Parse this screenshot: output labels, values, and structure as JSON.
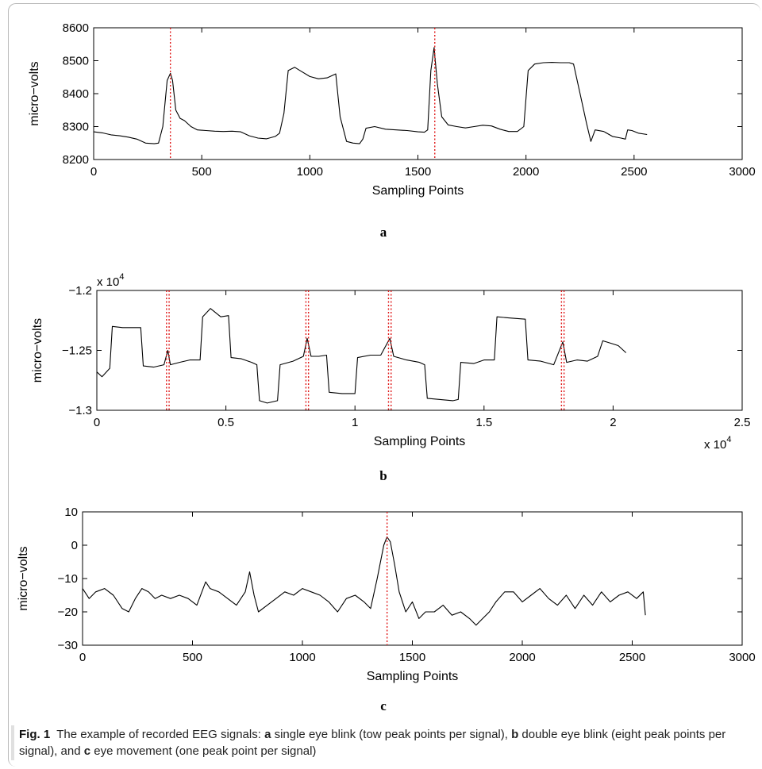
{
  "chart_data": [
    {
      "id": "a",
      "type": "line",
      "panel_label": "a",
      "xlabel": "Sampling Points",
      "ylabel": "micro−volts",
      "xlim": [
        0,
        3000
      ],
      "ylim": [
        8200,
        8600
      ],
      "xticks": [
        "0",
        "500",
        "1000",
        "1500",
        "2000",
        "2500",
        "3000"
      ],
      "yticks": [
        "8200",
        "8300",
        "8400",
        "8500",
        "8600"
      ],
      "exponent_x": "",
      "exponent_y": "",
      "markers_x": [
        355,
        1578
      ],
      "series": [
        {
          "color": "#000000",
          "points": [
            [
              0,
              8284
            ],
            [
              40,
              8281
            ],
            [
              80,
              8275
            ],
            [
              120,
              8272
            ],
            [
              160,
              8268
            ],
            [
              200,
              8262
            ],
            [
              240,
              8250
            ],
            [
              280,
              8248
            ],
            [
              300,
              8250
            ],
            [
              320,
              8300
            ],
            [
              340,
              8440
            ],
            [
              355,
              8462
            ],
            [
              365,
              8440
            ],
            [
              380,
              8350
            ],
            [
              400,
              8325
            ],
            [
              420,
              8318
            ],
            [
              450,
              8300
            ],
            [
              480,
              8290
            ],
            [
              520,
              8288
            ],
            [
              560,
              8286
            ],
            [
              600,
              8285
            ],
            [
              640,
              8286
            ],
            [
              680,
              8284
            ],
            [
              720,
              8272
            ],
            [
              760,
              8265
            ],
            [
              800,
              8263
            ],
            [
              840,
              8270
            ],
            [
              860,
              8280
            ],
            [
              880,
              8340
            ],
            [
              900,
              8470
            ],
            [
              930,
              8480
            ],
            [
              960,
              8468
            ],
            [
              1000,
              8452
            ],
            [
              1040,
              8445
            ],
            [
              1080,
              8448
            ],
            [
              1120,
              8460
            ],
            [
              1140,
              8330
            ],
            [
              1170,
              8255
            ],
            [
              1200,
              8250
            ],
            [
              1230,
              8248
            ],
            [
              1245,
              8262
            ],
            [
              1260,
              8295
            ],
            [
              1300,
              8300
            ],
            [
              1350,
              8292
            ],
            [
              1400,
              8290
            ],
            [
              1450,
              8288
            ],
            [
              1500,
              8284
            ],
            [
              1530,
              8283
            ],
            [
              1545,
              8290
            ],
            [
              1560,
              8470
            ],
            [
              1575,
              8540
            ],
            [
              1590,
              8430
            ],
            [
              1610,
              8330
            ],
            [
              1640,
              8305
            ],
            [
              1680,
              8300
            ],
            [
              1720,
              8296
            ],
            [
              1760,
              8300
            ],
            [
              1800,
              8304
            ],
            [
              1840,
              8302
            ],
            [
              1880,
              8292
            ],
            [
              1920,
              8285
            ],
            [
              1960,
              8285
            ],
            [
              1990,
              8300
            ],
            [
              2010,
              8470
            ],
            [
              2040,
              8490
            ],
            [
              2080,
              8494
            ],
            [
              2120,
              8495
            ],
            [
              2160,
              8494
            ],
            [
              2200,
              8494
            ],
            [
              2220,
              8490
            ],
            [
              2250,
              8400
            ],
            [
              2280,
              8310
            ],
            [
              2300,
              8255
            ],
            [
              2320,
              8290
            ],
            [
              2360,
              8285
            ],
            [
              2400,
              8270
            ],
            [
              2440,
              8265
            ],
            [
              2460,
              8262
            ],
            [
              2470,
              8290
            ],
            [
              2490,
              8288
            ],
            [
              2520,
              8280
            ],
            [
              2560,
              8276
            ]
          ]
        }
      ]
    },
    {
      "id": "b",
      "type": "line",
      "panel_label": "b",
      "xlabel": "Sampling Points",
      "ylabel": "micro−volts",
      "xlim": [
        0,
        2.5
      ],
      "ylim": [
        -1.3,
        -1.2
      ],
      "xticks": [
        "0",
        "0.5",
        "1",
        "1.5",
        "2",
        "2.5"
      ],
      "yticks": [
        "−1.3",
        "−1.25",
        "−1.2"
      ],
      "exponent_x": "x 10",
      "exponent_y": "x 10",
      "exponent_power": "4",
      "markers_x": [
        0.27,
        0.28,
        0.81,
        0.82,
        1.13,
        1.14,
        1.8,
        1.81
      ],
      "series": [
        {
          "color": "#000000",
          "points": [
            [
              0,
              -1.268
            ],
            [
              0.02,
              -1.272
            ],
            [
              0.05,
              -1.265
            ],
            [
              0.06,
              -1.23
            ],
            [
              0.1,
              -1.231
            ],
            [
              0.15,
              -1.231
            ],
            [
              0.17,
              -1.231
            ],
            [
              0.18,
              -1.263
            ],
            [
              0.22,
              -1.264
            ],
            [
              0.26,
              -1.262
            ],
            [
              0.275,
              -1.25
            ],
            [
              0.285,
              -1.262
            ],
            [
              0.32,
              -1.26
            ],
            [
              0.36,
              -1.258
            ],
            [
              0.4,
              -1.258
            ],
            [
              0.41,
              -1.222
            ],
            [
              0.44,
              -1.215
            ],
            [
              0.48,
              -1.222
            ],
            [
              0.51,
              -1.221
            ],
            [
              0.52,
              -1.256
            ],
            [
              0.56,
              -1.257
            ],
            [
              0.6,
              -1.26
            ],
            [
              0.62,
              -1.262
            ],
            [
              0.63,
              -1.292
            ],
            [
              0.66,
              -1.294
            ],
            [
              0.7,
              -1.292
            ],
            [
              0.71,
              -1.262
            ],
            [
              0.76,
              -1.259
            ],
            [
              0.8,
              -1.255
            ],
            [
              0.815,
              -1.24
            ],
            [
              0.83,
              -1.255
            ],
            [
              0.86,
              -1.255
            ],
            [
              0.89,
              -1.254
            ],
            [
              0.9,
              -1.285
            ],
            [
              0.95,
              -1.286
            ],
            [
              1.0,
              -1.286
            ],
            [
              1.01,
              -1.256
            ],
            [
              1.06,
              -1.254
            ],
            [
              1.1,
              -1.254
            ],
            [
              1.135,
              -1.24
            ],
            [
              1.15,
              -1.255
            ],
            [
              1.2,
              -1.258
            ],
            [
              1.25,
              -1.26
            ],
            [
              1.27,
              -1.262
            ],
            [
              1.28,
              -1.29
            ],
            [
              1.33,
              -1.291
            ],
            [
              1.38,
              -1.292
            ],
            [
              1.4,
              -1.291
            ],
            [
              1.41,
              -1.26
            ],
            [
              1.46,
              -1.261
            ],
            [
              1.5,
              -1.258
            ],
            [
              1.54,
              -1.258
            ],
            [
              1.55,
              -1.222
            ],
            [
              1.6,
              -1.223
            ],
            [
              1.66,
              -1.224
            ],
            [
              1.67,
              -1.258
            ],
            [
              1.72,
              -1.259
            ],
            [
              1.77,
              -1.262
            ],
            [
              1.805,
              -1.243
            ],
            [
              1.82,
              -1.26
            ],
            [
              1.86,
              -1.258
            ],
            [
              1.9,
              -1.259
            ],
            [
              1.94,
              -1.255
            ],
            [
              1.96,
              -1.242
            ],
            [
              1.99,
              -1.244
            ],
            [
              2.02,
              -1.246
            ],
            [
              2.05,
              -1.252
            ]
          ]
        }
      ]
    },
    {
      "id": "c",
      "type": "line",
      "panel_label": "c",
      "xlabel": "Sampling Points",
      "ylabel": "micro−volts",
      "xlim": [
        0,
        3000
      ],
      "ylim": [
        -30,
        10
      ],
      "xticks": [
        "0",
        "500",
        "1000",
        "1500",
        "2000",
        "2500",
        "3000"
      ],
      "yticks": [
        "−30",
        "−20",
        "−10",
        "0",
        "10"
      ],
      "exponent_x": "",
      "exponent_y": "",
      "markers_x": [
        1385
      ],
      "series": [
        {
          "color": "#000000",
          "points": [
            [
              0,
              -13
            ],
            [
              30,
              -16
            ],
            [
              60,
              -14
            ],
            [
              100,
              -13
            ],
            [
              140,
              -15
            ],
            [
              180,
              -19
            ],
            [
              210,
              -20
            ],
            [
              240,
              -16
            ],
            [
              270,
              -13
            ],
            [
              300,
              -14
            ],
            [
              330,
              -16
            ],
            [
              360,
              -15
            ],
            [
              400,
              -16
            ],
            [
              440,
              -15
            ],
            [
              480,
              -16
            ],
            [
              520,
              -18
            ],
            [
              560,
              -11
            ],
            [
              580,
              -13
            ],
            [
              620,
              -14
            ],
            [
              660,
              -16
            ],
            [
              700,
              -18
            ],
            [
              740,
              -14
            ],
            [
              760,
              -8
            ],
            [
              780,
              -15
            ],
            [
              800,
              -20
            ],
            [
              840,
              -18
            ],
            [
              880,
              -16
            ],
            [
              920,
              -14
            ],
            [
              960,
              -15
            ],
            [
              1000,
              -13
            ],
            [
              1040,
              -14
            ],
            [
              1080,
              -15
            ],
            [
              1120,
              -17
            ],
            [
              1160,
              -20
            ],
            [
              1200,
              -16
            ],
            [
              1240,
              -15
            ],
            [
              1280,
              -17
            ],
            [
              1310,
              -19
            ],
            [
              1340,
              -10
            ],
            [
              1370,
              0
            ],
            [
              1385,
              2.5
            ],
            [
              1400,
              1
            ],
            [
              1420,
              -6
            ],
            [
              1440,
              -14
            ],
            [
              1470,
              -20
            ],
            [
              1500,
              -17
            ],
            [
              1530,
              -22
            ],
            [
              1560,
              -20
            ],
            [
              1600,
              -20
            ],
            [
              1640,
              -18
            ],
            [
              1680,
              -21
            ],
            [
              1720,
              -20
            ],
            [
              1760,
              -22
            ],
            [
              1790,
              -24
            ],
            [
              1820,
              -22
            ],
            [
              1850,
              -20
            ],
            [
              1880,
              -17
            ],
            [
              1920,
              -14
            ],
            [
              1960,
              -14
            ],
            [
              2000,
              -17
            ],
            [
              2040,
              -15
            ],
            [
              2080,
              -13
            ],
            [
              2120,
              -16
            ],
            [
              2160,
              -18
            ],
            [
              2200,
              -15
            ],
            [
              2240,
              -19
            ],
            [
              2280,
              -15
            ],
            [
              2320,
              -18
            ],
            [
              2360,
              -14
            ],
            [
              2400,
              -17
            ],
            [
              2440,
              -15
            ],
            [
              2480,
              -14
            ],
            [
              2520,
              -16
            ],
            [
              2550,
              -14
            ],
            [
              2560,
              -21
            ]
          ]
        }
      ]
    }
  ],
  "caption": {
    "fig_label": "Fig. 1",
    "intro": "The example of recorded EEG signals:",
    "a_label": "a",
    "a_text": "single eye blink (tow peak points per signal),",
    "b_label": "b",
    "b_text": "double eye blink (eight peak points per signal), and",
    "c_label": "c",
    "c_text": "eye movement (one peak point per signal)"
  }
}
